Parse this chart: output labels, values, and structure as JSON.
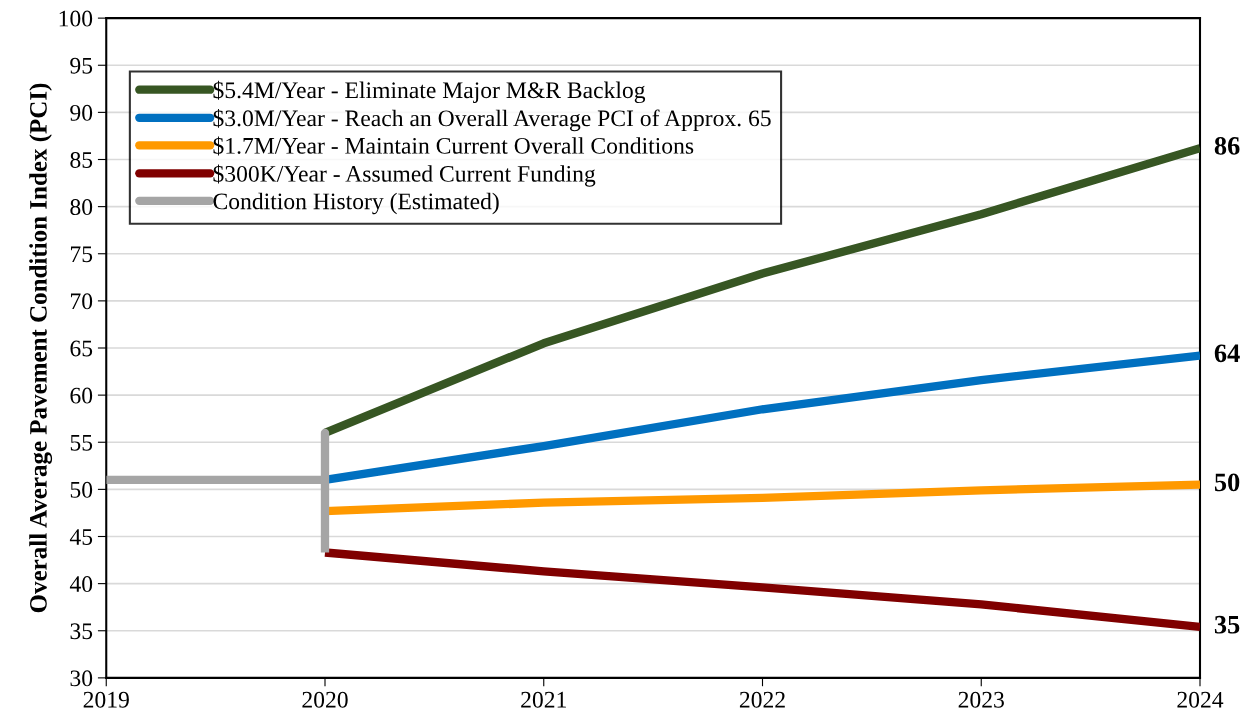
{
  "chart_data": {
    "type": "line",
    "ylabel": "Overall Average Pavement Condition Index (PCI)",
    "series": [
      {
        "name": "$5.4M/Year - Eliminate Major M&R Backlog",
        "color": "#375623",
        "x": [
          2020,
          2021,
          2022,
          2023,
          2024
        ],
        "values": [
          56.0,
          65.5,
          72.9,
          79.2,
          86.2
        ],
        "value_labels": [
          null,
          null,
          null,
          null,
          "86"
        ]
      },
      {
        "name": "$3.0M/Year - Reach an Overall Average PCI of Approx. 65",
        "color": "#0070c0",
        "x": [
          2020,
          2021,
          2022,
          2023,
          2024
        ],
        "values": [
          51.0,
          54.6,
          58.5,
          61.6,
          64.2
        ],
        "value_labels": [
          null,
          null,
          null,
          null,
          "64"
        ]
      },
      {
        "name": "$1.7M/Year - Maintain Current Overall Conditions",
        "color": "#ff9900",
        "x": [
          2020,
          2021,
          2022,
          2023,
          2024
        ],
        "values": [
          47.7,
          48.6,
          49.1,
          49.9,
          50.5
        ],
        "value_labels": [
          null,
          null,
          null,
          null,
          "50"
        ]
      },
      {
        "name": "$300K/Year - Assumed Current Funding",
        "color": "#800000",
        "x": [
          2020,
          2021,
          2022,
          2023,
          2024
        ],
        "values": [
          43.3,
          41.3,
          39.6,
          37.8,
          35.4
        ],
        "value_labels": [
          null,
          null,
          null,
          null,
          "35"
        ]
      },
      {
        "name": "Condition History (Estimated)",
        "color": "#a5a5a5",
        "x": [
          2019,
          2020,
          2020,
          2020
        ],
        "values": [
          51.0,
          51.0,
          56.0,
          43.3
        ]
      }
    ],
    "xlim": [
      2019,
      2024
    ],
    "xticks": [
      2019,
      2020,
      2021,
      2022,
      2023,
      2024
    ],
    "ylim": [
      30,
      100
    ],
    "yticks": [
      30,
      35,
      40,
      45,
      50,
      55,
      60,
      65,
      70,
      75,
      80,
      85,
      90,
      95,
      100
    ],
    "grid": "y",
    "legend": "top left",
    "marker": "none",
    "line_style": "solid"
  }
}
